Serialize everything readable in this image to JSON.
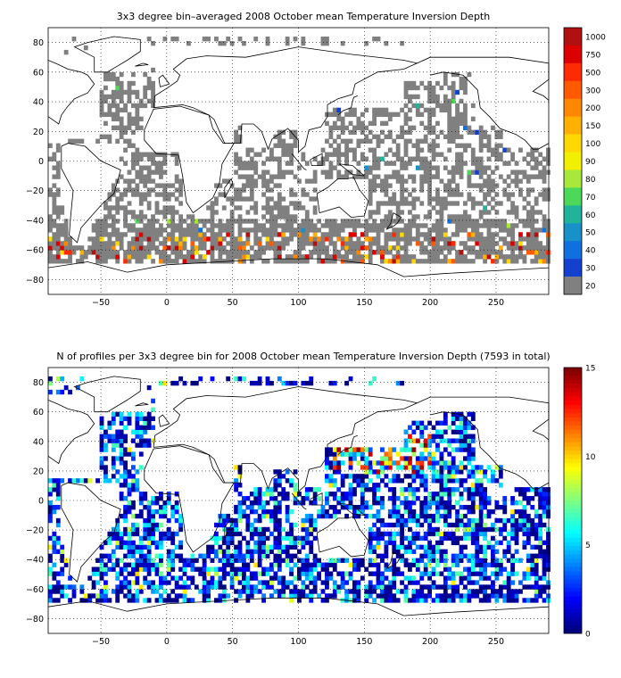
{
  "panels": [
    {
      "title": "3x3 degree bin–averaged 2008 October mean Temperature Inversion Depth",
      "x_ticks": [
        "−50",
        "0",
        "50",
        "100",
        "150",
        "200",
        "250"
      ],
      "y_ticks": [
        "80",
        "60",
        "40",
        "20",
        "0",
        "−20",
        "−40",
        "−60",
        "−80"
      ],
      "colorbar": {
        "type": "discrete",
        "labels": [
          "1000",
          "750",
          "500",
          "300",
          "200",
          "150",
          "100",
          "90",
          "80",
          "70",
          "60",
          "50",
          "40",
          "30",
          "20"
        ],
        "colors": [
          "#b01010",
          "#dd0000",
          "#ff2a00",
          "#ff5a00",
          "#ff8800",
          "#ffb000",
          "#ffd800",
          "#f0f000",
          "#a8e83a",
          "#4cd95a",
          "#22b49a",
          "#1890c8",
          "#1070e0",
          "#1440d0",
          "#808080"
        ]
      }
    },
    {
      "title": "N of profiles per 3x3 degree bin for 2008 October mean Temperature Inversion Depth  (7593 in total)",
      "x_ticks": [
        "−50",
        "0",
        "50",
        "100",
        "150",
        "200",
        "250"
      ],
      "y_ticks": [
        "80",
        "60",
        "40",
        "20",
        "0",
        "−20",
        "−40",
        "−60",
        "−80"
      ],
      "colorbar": {
        "type": "continuous",
        "labels": [
          "15",
          "10",
          "5",
          "0"
        ],
        "colormap": "jet"
      }
    }
  ],
  "chart_data": [
    {
      "type": "heatmap",
      "title": "3x3 degree bin–averaged 2008 October mean Temperature Inversion Depth",
      "x_range": [
        -90,
        290
      ],
      "y_range": [
        -90,
        90
      ],
      "bin_size_deg": 3,
      "color_levels": [
        20,
        30,
        40,
        50,
        60,
        70,
        80,
        90,
        100,
        150,
        200,
        300,
        500,
        750,
        1000
      ],
      "note_values": "most ocean bins fall in the lowest (grey, <=20) class; warm-colour high values concentrated near 55-70 S in the Southern Ocean"
    },
    {
      "type": "heatmap",
      "title": "N of profiles per 3x3 degree bin for 2008 October mean Temperature Inversion Depth  (7593 in total)",
      "x_range": [
        -90,
        290
      ],
      "y_range": [
        -90,
        90
      ],
      "bin_size_deg": 3,
      "total_profiles": 7593,
      "color_range": [
        0,
        15
      ],
      "note_values": "highest counts (10-15) in the western North Pacific near Japan"
    }
  ]
}
